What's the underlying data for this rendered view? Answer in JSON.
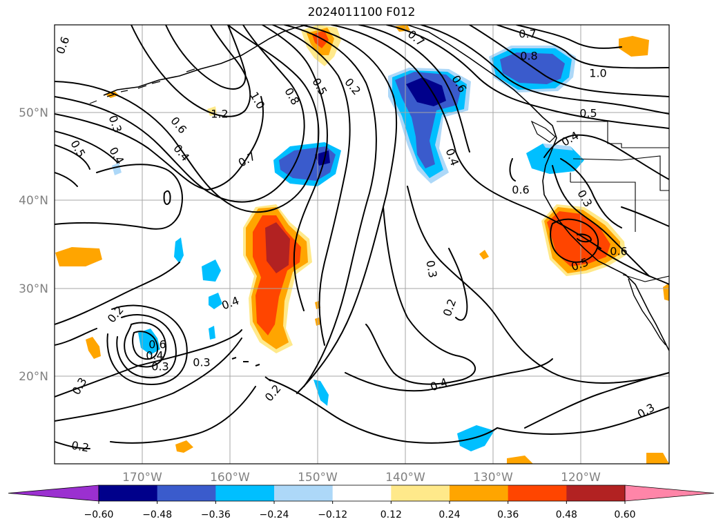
{
  "title": "2024011100 F012",
  "lon_ticks": [
    "170°W",
    "160°W",
    "150°W",
    "140°W",
    "130°W",
    "120°W"
  ],
  "lat_ticks": [
    "50°N",
    "40°N",
    "30°N",
    "20°N"
  ],
  "colorbar": {
    "ticks": [
      "−0.60",
      "−0.48",
      "−0.36",
      "−0.24",
      "−0.12",
      "0.12",
      "0.24",
      "0.36",
      "0.48",
      "0.60"
    ],
    "colors": [
      "#9b30d0",
      "#00008b",
      "#3a5bcc",
      "#00bfff",
      "#add8f8",
      "#ffffff",
      "#ffe98a",
      "#ffa500",
      "#ff4500",
      "#b22222",
      "#ff85a8"
    ]
  },
  "contour_labels": [
    {
      "text": "0.6"
    },
    {
      "text": "0.3"
    },
    {
      "text": "0.5"
    },
    {
      "text": "0.4"
    },
    {
      "text": "0.6"
    },
    {
      "text": "0.4"
    },
    {
      "text": "1.2"
    },
    {
      "text": "1.0"
    },
    {
      "text": "0.7"
    },
    {
      "text": "0.8"
    },
    {
      "text": "0.5"
    },
    {
      "text": "0.2"
    },
    {
      "text": "0.7"
    },
    {
      "text": "0.6"
    },
    {
      "text": "0.7"
    },
    {
      "text": "0.8"
    },
    {
      "text": "1.0"
    },
    {
      "text": "0.5"
    },
    {
      "text": "0.4"
    },
    {
      "text": "0.6"
    },
    {
      "text": "0.4"
    },
    {
      "text": "0.3"
    },
    {
      "text": "0.6"
    },
    {
      "text": "0.5"
    },
    {
      "text": "0.3"
    },
    {
      "text": "0.2"
    },
    {
      "text": "0.4"
    },
    {
      "text": "0.2"
    },
    {
      "text": "0.4"
    },
    {
      "text": "0.3"
    },
    {
      "text": "0.3"
    },
    {
      "text": "0.2"
    },
    {
      "text": "0.2"
    },
    {
      "text": "0.3"
    },
    {
      "text": "0.4"
    },
    {
      "text": "0.3"
    },
    {
      "text": "0.6"
    }
  ]
}
